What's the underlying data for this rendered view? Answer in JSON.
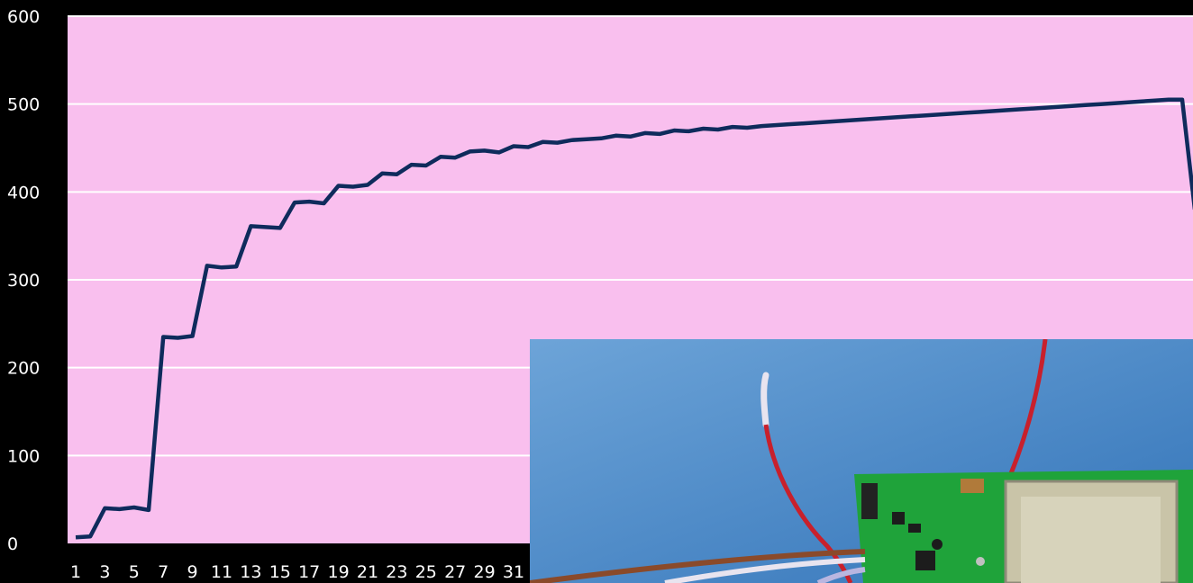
{
  "chart_data": {
    "type": "line",
    "ylim": [
      0,
      600
    ],
    "y_ticks": [
      "0",
      "100",
      "200",
      "300",
      "400",
      "500",
      "600"
    ],
    "x_tick_labels": [
      "1",
      "3",
      "5",
      "7",
      "9",
      "11",
      "13",
      "15",
      "17",
      "19",
      "21",
      "23",
      "25",
      "27",
      "29",
      "31"
    ],
    "grid": true,
    "colors": {
      "plot_bg": "#f9bfee",
      "line": "#0f2b5c",
      "grid": "#ffffff",
      "text": "#ffffff",
      "page_bg": "#000000"
    },
    "series": [
      {
        "x": [
          1,
          2,
          3,
          4,
          5,
          6,
          7,
          8,
          9,
          10,
          11,
          12,
          13,
          14,
          15,
          16,
          17,
          18,
          19,
          20,
          21,
          22,
          23,
          24,
          25,
          26,
          27,
          28,
          29,
          30,
          31,
          32,
          33,
          34,
          35,
          36,
          37,
          38,
          39,
          40,
          41,
          42,
          43,
          44,
          45,
          46,
          47,
          48,
          49,
          50,
          51,
          52,
          53,
          54,
          55,
          56,
          57,
          58,
          59,
          60,
          61,
          62,
          63,
          64,
          65,
          66,
          67,
          68,
          69,
          70,
          71,
          72,
          73,
          74,
          75,
          76,
          77,
          78,
          79,
          80
        ],
        "values": [
          7,
          8,
          40,
          39,
          41,
          38,
          235,
          234,
          236,
          316,
          314,
          315,
          361,
          360,
          359,
          388,
          389,
          387,
          407,
          406,
          408,
          421,
          420,
          431,
          430,
          440,
          439,
          446,
          447,
          445,
          452,
          451,
          457,
          456,
          459,
          460,
          461,
          464,
          463,
          467,
          466,
          470,
          469,
          472,
          471,
          474,
          473,
          475,
          476,
          477,
          478,
          479,
          480,
          481,
          482,
          483,
          484,
          485,
          486,
          487,
          488,
          489,
          490,
          491,
          492,
          493,
          494,
          495,
          496,
          497,
          498,
          499,
          500,
          501,
          502,
          503,
          504,
          505,
          505,
          380
        ]
      }
    ]
  },
  "photo": {
    "description_icon": "circuit-board-photo",
    "colors": {
      "background": "#3a7fc4",
      "pcb": "#1fa33a",
      "shield": "#c9c4a8",
      "wire_red": "#c8202c",
      "wire_white": "#e8e4ef",
      "wire_brown": "#8a4a2a"
    }
  }
}
